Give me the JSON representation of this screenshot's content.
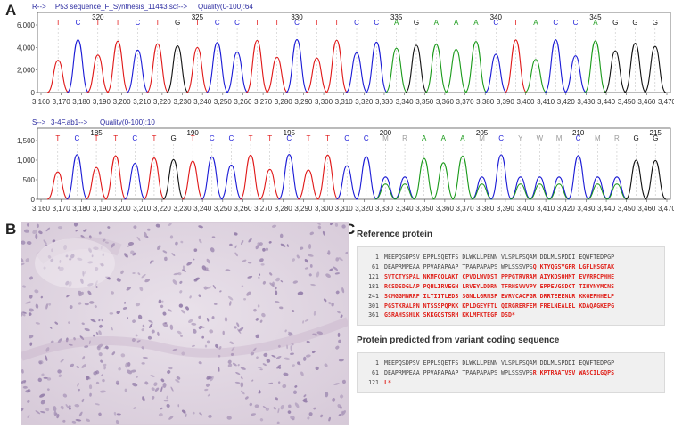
{
  "panels": {
    "a": "A",
    "b": "B",
    "c": "C"
  },
  "trace_top": {
    "header_prefix": "R-->",
    "header_file": "TP53 sequence_F_Synthesis_11443.scf-->",
    "header_quality": "Quality(0-100):64",
    "y_ticks": [
      "6,000",
      "4,000",
      "2,000",
      "0"
    ],
    "positions": [
      "320",
      "325",
      "330",
      "335",
      "340",
      "345"
    ],
    "bases": [
      "T",
      "C",
      "T",
      "T",
      "C",
      "T",
      "G",
      "T",
      "C",
      "C",
      "T",
      "T",
      "C",
      "T",
      "T",
      "C",
      "C",
      "A",
      "G",
      "A",
      "A",
      "A",
      "C",
      "T",
      "A",
      "C",
      "C",
      "A",
      "G",
      "G",
      "G"
    ],
    "x_ticks": [
      "3,160",
      "3,170",
      "3,180",
      "3,190",
      "3,200",
      "3,210",
      "3,220",
      "3,230",
      "3,240",
      "3,250",
      "3,260",
      "3,270",
      "3,280",
      "3,290",
      "3,300",
      "3,310",
      "3,320",
      "3,330",
      "3,340",
      "3,350",
      "3,360",
      "3,370",
      "3,380",
      "3,390",
      "3,400",
      "3,410",
      "3,420",
      "3,430",
      "3,440",
      "3,450",
      "3,460",
      "3,470"
    ]
  },
  "trace_bottom": {
    "header_prefix": "S-->",
    "header_file": "3-4F.ab1-->",
    "header_quality": "Quality(0-100):10",
    "y_ticks": [
      "1,500",
      "1,000",
      "500",
      "0"
    ],
    "positions": [
      "185",
      "190",
      "195",
      "200",
      "205",
      "210",
      "215"
    ],
    "bases": [
      "T",
      "C",
      "T",
      "T",
      "C",
      "T",
      "G",
      "T",
      "C",
      "C",
      "T",
      "T",
      "C",
      "T",
      "T",
      "C",
      "C",
      "M",
      "R",
      "A",
      "A",
      "A",
      "M",
      "C",
      "Y",
      "W",
      "M",
      "C",
      "M",
      "R",
      "G",
      "G"
    ],
    "x_ticks": [
      "3,160",
      "3,170",
      "3,180",
      "3,190",
      "3,200",
      "3,210",
      "3,220",
      "3,230",
      "3,240",
      "3,250",
      "3,260",
      "3,270",
      "3,280",
      "3,290",
      "3,300",
      "3,310",
      "3,320",
      "3,330",
      "3,340",
      "3,350",
      "3,360",
      "3,370",
      "3,380",
      "3,390",
      "3,400",
      "3,410",
      "3,420",
      "3,430",
      "3,440",
      "3,450",
      "3,460",
      "3,470"
    ]
  },
  "colors": {
    "A": "#1a9a1a",
    "C": "#1a1ad6",
    "G": "#111111",
    "T": "#e01818",
    "ambiguous": "#9a9a9a",
    "mutation": "#e0231c"
  },
  "reference": {
    "title": "Reference protein",
    "rows": [
      {
        "n": "1",
        "text": "MEEPQSDPSV EPPLSQETFS DLWKLLPENN VLSPLPSQAM DDLMLSPDDI EQWFTEDPGP",
        "red": ""
      },
      {
        "n": "61",
        "text": "DEAPRMPEAA PPVAPAPAAP TPAAPAPAPS WPLSSSVPS",
        "red": "Q KTYQGSYGFR LGFLHSGTAK"
      },
      {
        "n": "121",
        "text": "",
        "red": "SVTCTYSPAL NKMFCQLAKT CPVQLWVDST PPPGTRVRAM AIYKQSQHMT EVVRRCPHHE"
      },
      {
        "n": "181",
        "text": "",
        "red": "RCSDSDGLAP PQHLIRVEGN LRVEYLDDRN TFRHSVVVPY EPPEVGSDCT TIHYNYMCNS"
      },
      {
        "n": "241",
        "text": "",
        "red": "SCMGGMNRRP ILTIITLEDS SGNLLGRNSF EVRVCACPGR DRRTEEENLR KKGEPHHELP"
      },
      {
        "n": "301",
        "text": "",
        "red": "PGSTKRALPN NTSSSPQPKK KPLDGEYFTL QIRGRERFEM FRELNEALEL KDAQAGKEPG"
      },
      {
        "n": "361",
        "text": "",
        "red": "GSRAHSSHLK SKKGQSTSRH KKLMFKTEGP DSD*"
      }
    ]
  },
  "predicted": {
    "title": "Protein predicted from variant coding sequence",
    "rows": [
      {
        "n": "1",
        "text": "MEEPQSDPSV EPPLSQETFS DLWKLLPENN VLSPLPSQAM DDLMLSPDDI EQWFTEDPGP",
        "red": ""
      },
      {
        "n": "61",
        "text": "DEAPRMPEAA PPVAPAPAAP TPAAPAPAPS WPLSSSVPS",
        "red": "R KPTRAATVSV WASCILGQPS"
      },
      {
        "n": "121",
        "text": "",
        "red": "L*"
      }
    ]
  }
}
